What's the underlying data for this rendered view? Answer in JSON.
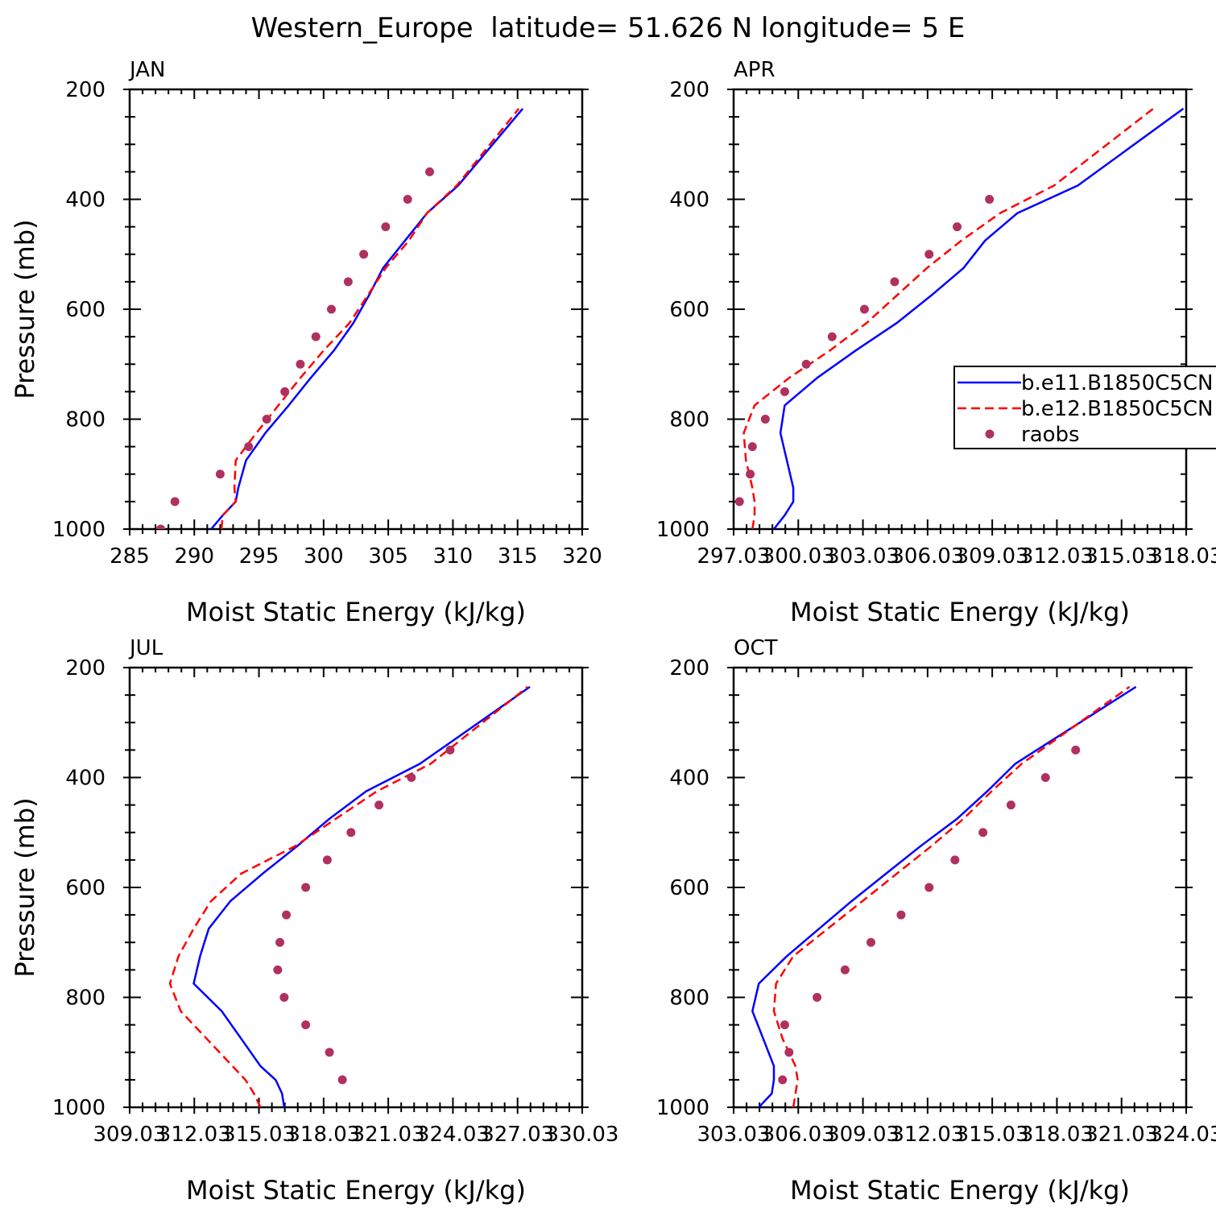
{
  "figure": {
    "title": "Western_Europe  latitude= 51.626 N longitude= 5 E"
  },
  "legend": {
    "entries": [
      {
        "label": "b.e11.B1850C5CN",
        "color": "#0000ff",
        "style": "solid"
      },
      {
        "label": "b.e12.B1850C5CN",
        "color": "#ff0000",
        "style": "dashed"
      },
      {
        "label": "raobs",
        "color": "#b03060",
        "style": "dots"
      }
    ]
  },
  "chart_data": [
    {
      "type": "line",
      "title": "JAN",
      "xlabel": "Moist Static Energy (kJ/kg)",
      "ylabel": "Pressure (mb)",
      "xlim": [
        285,
        320
      ],
      "ylim": [
        1000,
        200
      ],
      "xticks": [
        285,
        290,
        295,
        300,
        305,
        310,
        315,
        320
      ],
      "xticklabels": [
        "285",
        "290",
        "295",
        "300",
        "305",
        "310",
        "315",
        "320"
      ],
      "yticks": [
        200,
        400,
        600,
        800,
        1000
      ],
      "yticklabels": [
        "200",
        "400",
        "600",
        "800",
        "1000"
      ],
      "series": [
        {
          "name": "b.e11.B1850C5CN",
          "x": [
            291.3,
            292.2,
            293.2,
            293.4,
            294.0,
            295.5,
            297.3,
            299.0,
            300.8,
            302.3,
            303.5,
            304.6,
            306.3,
            308.0,
            310.4,
            315.4
          ],
          "y": [
            1000,
            975,
            950,
            925,
            875,
            825,
            775,
            725,
            675,
            625,
            575,
            525,
            475,
            425,
            375,
            235
          ]
        },
        {
          "name": "b.e12.B1850C5CN",
          "x": [
            292.1,
            292.2,
            293.2,
            293.1,
            293.2,
            294.8,
            296.5,
            298.2,
            300.0,
            302.0,
            303.4,
            304.8,
            306.6,
            308.0,
            310.3,
            315.1
          ],
          "y": [
            1000,
            975,
            950,
            925,
            875,
            825,
            775,
            725,
            675,
            625,
            575,
            525,
            475,
            425,
            375,
            235
          ]
        },
        {
          "name": "raobs",
          "x": [
            287.4,
            288.5,
            292.0,
            294.2,
            295.6,
            297.0,
            298.2,
            299.4,
            300.6,
            301.9,
            303.1,
            304.8,
            306.5,
            308.2
          ],
          "y": [
            1000,
            950,
            900,
            850,
            800,
            750,
            700,
            650,
            600,
            550,
            500,
            450,
            400,
            350
          ]
        }
      ]
    },
    {
      "type": "line",
      "title": "APR",
      "xlabel": "Moist Static Energy (kJ/kg)",
      "ylabel": "",
      "xlim": [
        297.03,
        318.03
      ],
      "ylim": [
        1000,
        200
      ],
      "xticks": [
        297.03,
        300.03,
        303.03,
        306.03,
        309.03,
        312.03,
        315.03,
        318.03
      ],
      "xticklabels": [
        "297.03",
        "300.03",
        "303.03",
        "306.03",
        "309.03",
        "312.03",
        "315.03",
        "318.03"
      ],
      "yticks": [
        200,
        400,
        600,
        800,
        1000
      ],
      "yticklabels": [
        "200",
        "400",
        "600",
        "800",
        "1000"
      ],
      "series": [
        {
          "name": "b.e11.B1850C5CN",
          "x": [
            298.9,
            299.4,
            299.8,
            299.8,
            299.5,
            299.2,
            299.4,
            300.9,
            302.7,
            304.6,
            306.2,
            307.7,
            308.7,
            310.2,
            313.0,
            317.9
          ],
          "y": [
            1000,
            975,
            950,
            925,
            875,
            825,
            775,
            725,
            675,
            625,
            575,
            525,
            475,
            425,
            375,
            235
          ]
        },
        {
          "name": "b.e12.B1850C5CN",
          "x": [
            297.9,
            298.0,
            298.0,
            297.9,
            297.6,
            297.5,
            298.0,
            299.6,
            301.5,
            303.2,
            304.6,
            306.0,
            307.6,
            309.4,
            311.9,
            316.5
          ],
          "y": [
            1000,
            975,
            950,
            925,
            875,
            825,
            775,
            725,
            675,
            625,
            575,
            525,
            475,
            425,
            375,
            235
          ]
        },
        {
          "name": "raobs",
          "x": [
            297.3,
            297.8,
            297.9,
            298.5,
            299.4,
            300.4,
            301.6,
            303.1,
            304.5,
            306.1,
            307.4,
            308.9
          ],
          "y": [
            950,
            900,
            850,
            800,
            750,
            700,
            650,
            600,
            550,
            500,
            450,
            400
          ]
        }
      ]
    },
    {
      "type": "line",
      "title": "JUL",
      "xlabel": "Moist Static Energy (kJ/kg)",
      "ylabel": "Pressure (mb)",
      "xlim": [
        309.03,
        330.03
      ],
      "ylim": [
        1000,
        200
      ],
      "xticks": [
        309.03,
        312.03,
        315.03,
        318.03,
        321.03,
        324.03,
        327.03,
        330.03
      ],
      "xticklabels": [
        "309.03",
        "312.03",
        "315.03",
        "318.03",
        "321.03",
        "324.03",
        "327.03",
        "330.03"
      ],
      "yticks": [
        200,
        400,
        600,
        800,
        1000
      ],
      "yticklabels": [
        "200",
        "400",
        "600",
        "800",
        "1000"
      ],
      "series": [
        {
          "name": "b.e11.B1850C5CN",
          "x": [
            316.2,
            316.1,
            315.8,
            315.1,
            314.2,
            313.3,
            312.0,
            312.3,
            312.7,
            313.7,
            315.2,
            316.8,
            318.3,
            320.0,
            322.5,
            327.6
          ],
          "y": [
            1000,
            975,
            950,
            925,
            875,
            825,
            775,
            725,
            675,
            625,
            575,
            525,
            475,
            425,
            375,
            235
          ]
        },
        {
          "name": "b.e12.B1850C5CN",
          "x": [
            315.1,
            314.8,
            314.4,
            313.8,
            312.6,
            311.4,
            310.9,
            311.3,
            312.0,
            312.8,
            314.2,
            316.7,
            318.6,
            320.5,
            323.0,
            327.5
          ],
          "y": [
            1000,
            975,
            950,
            925,
            875,
            825,
            775,
            725,
            675,
            625,
            575,
            525,
            475,
            425,
            375,
            235
          ]
        },
        {
          "name": "raobs",
          "x": [
            318.9,
            318.3,
            317.2,
            316.2,
            315.9,
            316.0,
            316.3,
            317.2,
            318.2,
            319.3,
            320.6,
            322.1,
            323.9
          ],
          "y": [
            950,
            900,
            850,
            800,
            750,
            700,
            650,
            600,
            550,
            500,
            450,
            400,
            350
          ]
        }
      ]
    },
    {
      "type": "line",
      "title": "OCT",
      "xlabel": "Moist Static Energy (kJ/kg)",
      "ylabel": "",
      "xlim": [
        303.03,
        324.03
      ],
      "ylim": [
        1000,
        200
      ],
      "xticks": [
        303.03,
        306.03,
        309.03,
        312.03,
        315.03,
        318.03,
        321.03,
        324.03
      ],
      "xticklabels": [
        "303.03",
        "306.03",
        "309.03",
        "312.03",
        "315.03",
        "318.03",
        "321.03",
        "324.03"
      ],
      "yticks": [
        200,
        400,
        600,
        800,
        1000
      ],
      "yticklabels": [
        "200",
        "400",
        "600",
        "800",
        "1000"
      ],
      "series": [
        {
          "name": "b.e11.B1850C5CN",
          "x": [
            304.2,
            304.8,
            304.9,
            304.9,
            304.4,
            303.9,
            304.2,
            305.5,
            307.0,
            308.5,
            310.1,
            311.7,
            313.4,
            314.8,
            316.1,
            321.7
          ],
          "y": [
            1000,
            975,
            950,
            925,
            875,
            825,
            775,
            725,
            675,
            625,
            575,
            525,
            475,
            425,
            375,
            235
          ]
        },
        {
          "name": "b.e12.B1850C5CN",
          "x": [
            305.8,
            305.9,
            306.0,
            305.9,
            305.3,
            304.9,
            305.0,
            305.8,
            307.4,
            309.0,
            310.6,
            312.2,
            313.7,
            315.0,
            316.4,
            321.4
          ],
          "y": [
            1000,
            975,
            950,
            925,
            875,
            825,
            775,
            725,
            675,
            625,
            575,
            525,
            475,
            425,
            375,
            235
          ]
        },
        {
          "name": "raobs",
          "x": [
            305.3,
            305.6,
            305.4,
            306.9,
            308.2,
            309.4,
            310.8,
            312.1,
            313.3,
            314.6,
            315.9,
            317.5,
            318.9
          ],
          "y": [
            950,
            900,
            850,
            800,
            750,
            700,
            650,
            600,
            550,
            500,
            450,
            400,
            350
          ]
        }
      ]
    }
  ]
}
